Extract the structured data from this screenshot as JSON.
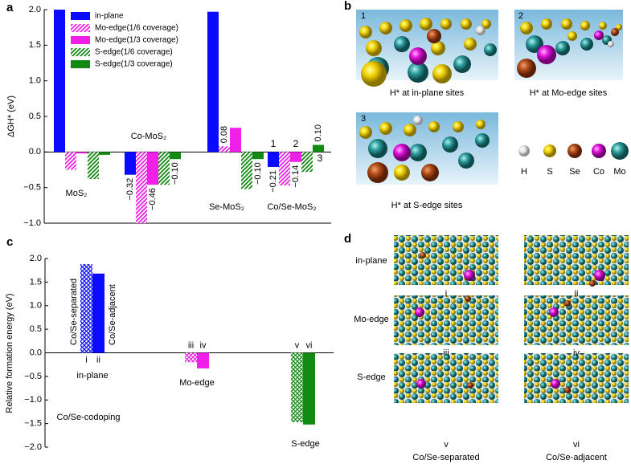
{
  "figure": {
    "panel_labels": [
      "a",
      "b",
      "c",
      "d"
    ]
  },
  "chart_data": [
    {
      "type": "bar",
      "ylabel": "ΔGH* (eV)",
      "categories": [
        "MoS₂",
        "Co-MoS₂",
        "Se-MoS₂",
        "Co/Se-MoS₂"
      ],
      "ylim": [
        -1,
        2
      ],
      "yticks": [
        {
          "value": -1,
          "label": "−1.0"
        },
        {
          "value": -0.5,
          "label": "−0.5"
        },
        {
          "value": 0,
          "label": "0.0"
        },
        {
          "value": 0.5,
          "label": "0.5"
        },
        {
          "value": 1,
          "label": "1.0"
        },
        {
          "value": 1.5,
          "label": "1.5"
        },
        {
          "value": 2,
          "label": "2.0"
        }
      ],
      "legend": "upper left",
      "annotations": [
        "1",
        "2",
        "3"
      ],
      "series": [
        {
          "name": "in-plane",
          "color": "#0a0aff",
          "hatch": "none",
          "label_color": "#0a0aff",
          "values": [
            2.0,
            -0.32,
            1.97,
            -0.21
          ],
          "value_labels": [
            null,
            "−0.32",
            null,
            "−0.21"
          ]
        },
        {
          "name": "Mo-edge(1/6 coverage)",
          "color": "#f020e8",
          "hatch": "diagonal",
          "label_color": "#ff0000",
          "values": [
            -0.25,
            -1.0,
            0.08,
            -0.47
          ],
          "value_labels": [
            null,
            null,
            "0.08",
            null
          ]
        },
        {
          "name": "Mo-edge(1/3 coverage)",
          "color": "#f020e8",
          "hatch": "none",
          "label_color": "#ff0000",
          "values": [
            -0.02,
            -0.46,
            0.34,
            -0.14
          ],
          "value_labels": [
            null,
            "−0.46",
            null,
            "−0.14"
          ]
        },
        {
          "name": "S-edge(1/6 coverage)",
          "color": "#138a13",
          "hatch": "diagonal",
          "label_color": "#138a13",
          "values": [
            -0.38,
            -0.46,
            -0.52,
            -0.28
          ],
          "value_labels": [
            null,
            null,
            null,
            null
          ]
        },
        {
          "name": "S-edge(1/3 coverage)",
          "color": "#138a13",
          "hatch": "none",
          "label_color": "#138a13",
          "values": [
            -0.04,
            -0.1,
            -0.1,
            0.1
          ],
          "value_labels": [
            null,
            "−0.10",
            "−0.10",
            "0.10"
          ]
        }
      ]
    },
    {
      "type": "bar",
      "ylabel": "Relative formation energy (eV)",
      "categories": [
        "i",
        "ii",
        "iii",
        "iv",
        "v",
        "vi"
      ],
      "values": [
        1.88,
        1.68,
        -0.2,
        -0.33,
        -1.47,
        -1.52
      ],
      "colors": [
        "#0a0aff",
        "#0a0aff",
        "#f020e8",
        "#f020e8",
        "#138a13",
        "#138a13"
      ],
      "hatches": [
        "cross",
        "none",
        "cross",
        "none",
        "cross",
        "none"
      ],
      "ylim": [
        -2,
        2
      ],
      "yticks": [
        {
          "value": -2,
          "label": "−2.0"
        },
        {
          "value": -1.5,
          "label": "−1.5"
        },
        {
          "value": -1,
          "label": "−1.0"
        },
        {
          "value": -0.5,
          "label": "−0.5"
        },
        {
          "value": 0,
          "label": "0.0"
        },
        {
          "value": 0.5,
          "label": "0.5"
        },
        {
          "value": 1,
          "label": "1.0"
        },
        {
          "value": 1.5,
          "label": "1.5"
        },
        {
          "value": 2,
          "label": "2.0"
        }
      ],
      "groups": [
        "in-plane",
        "Mo-edge",
        "S-edge"
      ],
      "bar_annotations": [
        "Co/Se-separated",
        "Co/Se-adjacent"
      ],
      "note": "Co/Se-codoping"
    }
  ],
  "panel_b": {
    "images": [
      {
        "number": "1",
        "caption": "H* at in-plane sites"
      },
      {
        "number": "2",
        "caption": "H* at Mo-edge sites"
      },
      {
        "number": "3",
        "caption": "H* at S-edge sites"
      }
    ],
    "atom_legend": [
      "H",
      "S",
      "Se",
      "Co",
      "Mo"
    ]
  },
  "panel_d": {
    "row_labels": [
      "in-plane",
      "Mo-edge",
      "S-edge"
    ],
    "image_labels": [
      "i",
      "ii",
      "iii",
      "iv",
      "v",
      "vi"
    ],
    "column_labels": [
      "Co/Se-separated",
      "Co/Se-adjacent"
    ]
  }
}
